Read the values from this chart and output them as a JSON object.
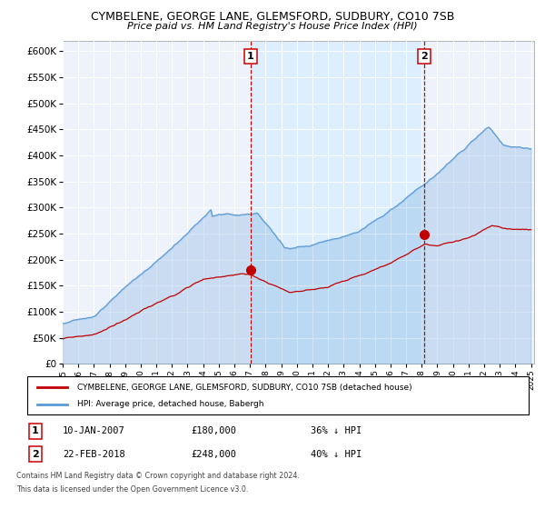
{
  "title": "CYMBELENE, GEORGE LANE, GLEMSFORD, SUDBURY, CO10 7SB",
  "subtitle": "Price paid vs. HM Land Registry's House Price Index (HPI)",
  "legend_line1": "CYMBELENE, GEORGE LANE, GLEMSFORD, SUDBURY, CO10 7SB (detached house)",
  "legend_line2": "HPI: Average price, detached house, Babergh",
  "annotation1_date": "10-JAN-2007",
  "annotation1_price": "£180,000",
  "annotation1_note": "36% ↓ HPI",
  "annotation2_date": "22-FEB-2018",
  "annotation2_price": "£248,000",
  "annotation2_note": "40% ↓ HPI",
  "vline1_year": 2007.03,
  "vline2_year": 2018.14,
  "dot1_year": 2007.03,
  "dot1_price": 180000,
  "dot2_year": 2018.14,
  "dot2_price": 248000,
  "hpi_line_color": "#5b9bd5",
  "price_color": "#c00000",
  "vline_color": "#cc0000",
  "shade_color": "#ddeeff",
  "ylim": [
    0,
    620000
  ],
  "yticks": [
    0,
    50000,
    100000,
    150000,
    200000,
    250000,
    300000,
    350000,
    400000,
    450000,
    500000,
    550000,
    600000
  ],
  "footer": "Contains HM Land Registry data © Crown copyright and database right 2024.\nThis data is licensed under the Open Government Licence v3.0.",
  "bg_color": "#eef2fb"
}
